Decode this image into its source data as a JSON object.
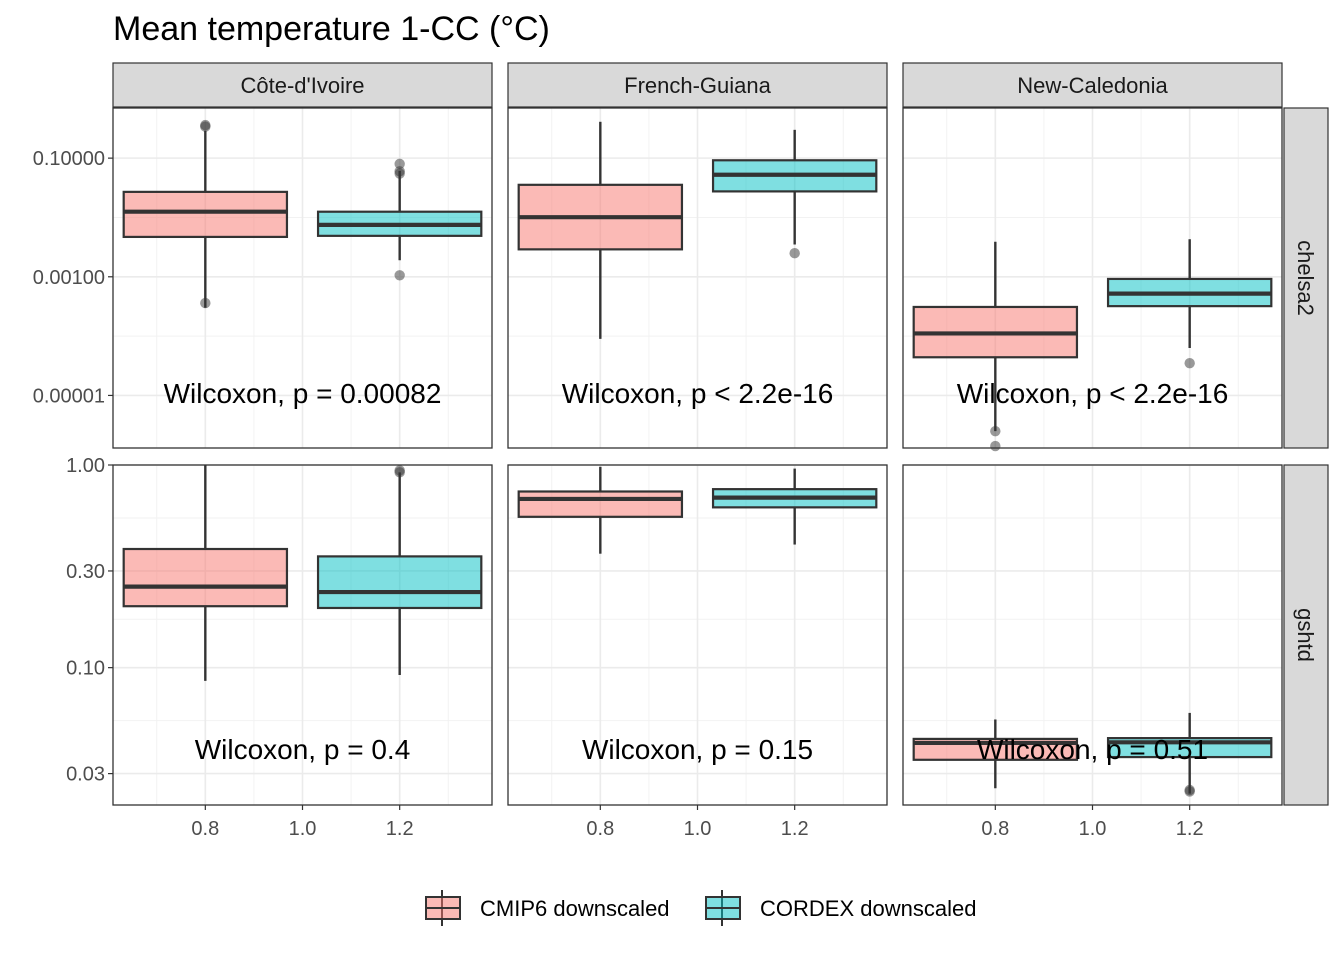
{
  "chart_data": {
    "type": "boxplot",
    "title": "Mean temperature 1-CC (°C)",
    "x_ticks": [
      "0.8",
      "1.0",
      "1.2"
    ],
    "facet_columns": [
      "Côte-d'Ivoire",
      "French-Guiana",
      "New-Caledonia"
    ],
    "facet_rows": [
      {
        "name": "chelsa2",
        "scale": "log10",
        "ylim": [
          1.3e-06,
          0.7
        ],
        "y_ticks": [
          {
            "value": 0.1,
            "label": "0.10000"
          },
          {
            "value": 0.001,
            "label": "0.00100"
          },
          {
            "value": 1e-05,
            "label": "0.00001"
          }
        ]
      },
      {
        "name": "gshtd",
        "scale": "log10",
        "ylim": [
          0.021,
          1.0
        ],
        "y_ticks": [
          {
            "value": 1.0,
            "label": "1.00"
          },
          {
            "value": 0.3,
            "label": "0.30"
          },
          {
            "value": 0.1,
            "label": "0.10"
          },
          {
            "value": 0.03,
            "label": "0.03"
          }
        ]
      }
    ],
    "legend": {
      "position": "bottom",
      "entries": [
        {
          "name": "CMIP6 downscaled",
          "color": "#F8766D"
        },
        {
          "name": "CORDEX downscaled",
          "color": "#00BFC4"
        }
      ]
    },
    "panels": [
      {
        "row": 0,
        "col": 0,
        "annotation": "Wilcoxon, p = 0.00082",
        "boxes": [
          {
            "series": "CMIP6 downscaled",
            "x": 0.8,
            "whisker_low": 0.0003,
            "q1": 0.0047,
            "median": 0.0125,
            "q3": 0.027,
            "whisker_high": 0.29,
            "outliers": [
              0.34,
              0.36,
              0.00036
            ]
          },
          {
            "series": "CORDEX downscaled",
            "x": 1.2,
            "whisker_low": 0.0019,
            "q1": 0.0049,
            "median": 0.0075,
            "q3": 0.0125,
            "whisker_high": 0.061,
            "outliers": [
              0.08,
              0.06,
              0.055,
              0.00106
            ]
          }
        ]
      },
      {
        "row": 0,
        "col": 1,
        "annotation": "Wilcoxon, p < 2.2e-16",
        "boxes": [
          {
            "series": "CMIP6 downscaled",
            "x": 0.8,
            "whisker_low": 9e-05,
            "q1": 0.0029,
            "median": 0.0101,
            "q3": 0.0355,
            "whisker_high": 0.41,
            "outliers": []
          },
          {
            "series": "CORDEX downscaled",
            "x": 1.2,
            "whisker_low": 0.0035,
            "q1": 0.0275,
            "median": 0.0525,
            "q3": 0.092,
            "whisker_high": 0.3,
            "outliers": [
              0.0025
            ]
          }
        ]
      },
      {
        "row": 0,
        "col": 2,
        "annotation": "Wilcoxon, p < 2.2e-16",
        "boxes": [
          {
            "series": "CMIP6 downscaled",
            "x": 0.8,
            "whisker_low": 2.5e-06,
            "q1": 4.4e-05,
            "median": 0.000111,
            "q3": 0.00031,
            "whisker_high": 0.0039,
            "outliers": [
              2.5e-06,
              1.4e-06
            ]
          },
          {
            "series": "CORDEX downscaled",
            "x": 1.2,
            "whisker_low": 6.3e-05,
            "q1": 0.00032,
            "median": 0.00052,
            "q3": 0.00092,
            "whisker_high": 0.0043,
            "outliers": [
              3.5e-05
            ]
          }
        ]
      },
      {
        "row": 1,
        "col": 0,
        "annotation": "Wilcoxon, p = 0.4",
        "boxes": [
          {
            "series": "CMIP6 downscaled",
            "x": 0.8,
            "whisker_low": 0.086,
            "q1": 0.201,
            "median": 0.251,
            "q3": 0.385,
            "whisker_high": 1.0,
            "outliers": []
          },
          {
            "series": "CORDEX downscaled",
            "x": 1.2,
            "whisker_low": 0.092,
            "q1": 0.197,
            "median": 0.236,
            "q3": 0.354,
            "whisker_high": 0.92,
            "outliers": [
              0.94,
              0.92
            ]
          }
        ]
      },
      {
        "row": 1,
        "col": 1,
        "annotation": "Wilcoxon, p = 0.15",
        "boxes": [
          {
            "series": "CMIP6 downscaled",
            "x": 0.8,
            "whisker_low": 0.365,
            "q1": 0.555,
            "median": 0.68,
            "q3": 0.74,
            "whisker_high": 0.98,
            "outliers": []
          },
          {
            "series": "CORDEX downscaled",
            "x": 1.2,
            "whisker_low": 0.405,
            "q1": 0.618,
            "median": 0.69,
            "q3": 0.76,
            "whisker_high": 0.96,
            "outliers": []
          }
        ]
      },
      {
        "row": 1,
        "col": 2,
        "annotation": "Wilcoxon, p = 0.51",
        "boxes": [
          {
            "series": "CMIP6 downscaled",
            "x": 0.8,
            "whisker_low": 0.0254,
            "q1": 0.0351,
            "median": 0.0425,
            "q3": 0.0445,
            "whisker_high": 0.0555,
            "outliers": []
          },
          {
            "series": "CORDEX downscaled",
            "x": 1.2,
            "whisker_low": 0.0239,
            "q1": 0.0362,
            "median": 0.0428,
            "q3": 0.0449,
            "whisker_high": 0.0598,
            "outliers": [
              0.0249,
              0.0245
            ]
          }
        ]
      }
    ]
  }
}
